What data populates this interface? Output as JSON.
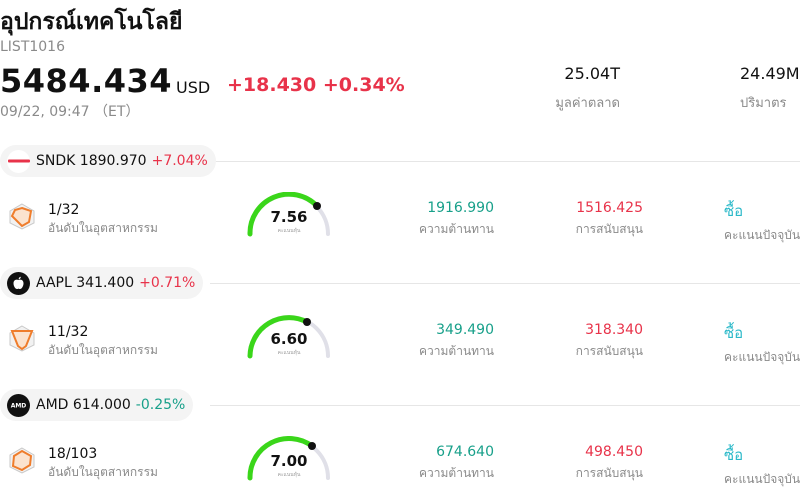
{
  "header": {
    "title": "อุปกรณ์เทคโนโลยี",
    "code": "LIST1016",
    "price": "5484.434",
    "currency": "USD",
    "change": "+18.430",
    "change_pct": "+0.34%",
    "time": "09/22, 09:47 （ET）",
    "market_cap": "25.04T",
    "market_cap_label": "มูลค่าตลาด",
    "volume": "24.49M",
    "volume_label": "ปริมาตร"
  },
  "colors": {
    "up": "#e8334a",
    "down": "#18a08a",
    "buy": "#2bb9c9",
    "gauge_green": "#3ad61a",
    "gauge_track": "#e0e0e8"
  },
  "stocks": [
    {
      "ticker": "SNDK",
      "price": "1890.970",
      "change_pct": "+7.04%",
      "direction": "up",
      "logo": "sndk-logo",
      "rank": "1/32",
      "rank_label": "อันดับในอุตสาหกรรม",
      "score": "7.56",
      "score_label": "คะแนนหุ้น",
      "resistance": "1916.990",
      "resistance_label": "ความต้านทาน",
      "support": "1516.425",
      "support_label": "การสนับสนุน",
      "rating": "ซื้อ",
      "rating_label": "คะแนนปัจจุบัน"
    },
    {
      "ticker": "AAPL",
      "price": "341.400",
      "change_pct": "+0.71%",
      "direction": "up",
      "logo": "apple-logo",
      "rank": "11/32",
      "rank_label": "อันดับในอุตสาหกรรม",
      "score": "6.60",
      "score_label": "คะแนนหุ้น",
      "resistance": "349.490",
      "resistance_label": "ความต้านทาน",
      "support": "318.340",
      "support_label": "การสนับสนุน",
      "rating": "ซื้อ",
      "rating_label": "คะแนนปัจจุบัน"
    },
    {
      "ticker": "AMD",
      "price": "614.000",
      "change_pct": "-0.25%",
      "direction": "down",
      "logo": "amd-logo",
      "rank": "18/103",
      "rank_label": "อันดับในอุตสาหกรรม",
      "score": "7.00",
      "score_label": "คะแนนหุ้น",
      "resistance": "674.640",
      "resistance_label": "ความต้านทาน",
      "support": "498.450",
      "support_label": "การสนับสนุน",
      "rating": "ซื้อ",
      "rating_label": "คะแนนปัจจุบัน"
    }
  ]
}
